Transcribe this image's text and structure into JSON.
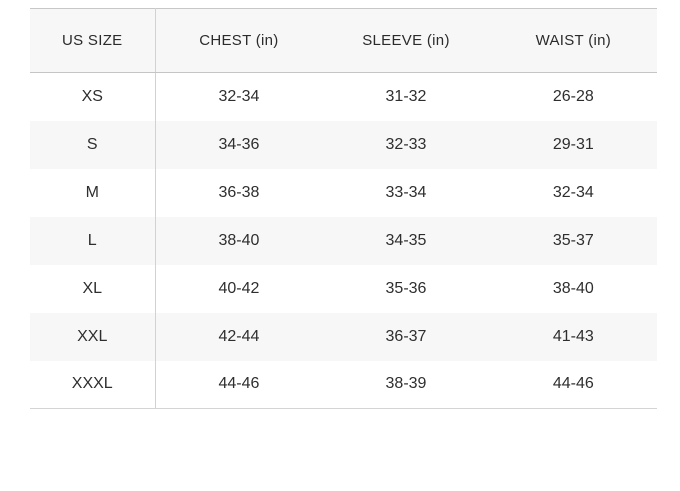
{
  "colors": {
    "header_bg": "#f7f7f7",
    "stripe_bg": "#f7f7f7",
    "top_border": "#c7c7c7",
    "header_border": "#c5c5c5",
    "divider": "#d2d2d2",
    "bottom_border": "#d4d4d4",
    "text": "#2e2e2e"
  },
  "size_chart": {
    "headers": [
      "US SIZE",
      "CHEST (in)",
      "SLEEVE (in)",
      "WAIST (in)"
    ],
    "rows": [
      {
        "size": "XS",
        "chest": "32-34",
        "sleeve": "31-32",
        "waist": "26-28"
      },
      {
        "size": "S",
        "chest": "34-36",
        "sleeve": "32-33",
        "waist": "29-31"
      },
      {
        "size": "M",
        "chest": "36-38",
        "sleeve": "33-34",
        "waist": "32-34"
      },
      {
        "size": "L",
        "chest": "38-40",
        "sleeve": "34-35",
        "waist": "35-37"
      },
      {
        "size": "XL",
        "chest": "40-42",
        "sleeve": "35-36",
        "waist": "38-40"
      },
      {
        "size": "XXL",
        "chest": "42-44",
        "sleeve": "36-37",
        "waist": "41-43"
      },
      {
        "size": "XXXL",
        "chest": "44-46",
        "sleeve": "38-39",
        "waist": "44-46"
      }
    ]
  },
  "chart_data": {
    "type": "table",
    "columns": [
      "US SIZE",
      "CHEST (in)",
      "SLEEVE (in)",
      "WAIST (in)"
    ],
    "rows": [
      [
        "XS",
        "32-34",
        "31-32",
        "26-28"
      ],
      [
        "S",
        "34-36",
        "32-33",
        "29-31"
      ],
      [
        "M",
        "36-38",
        "33-34",
        "32-34"
      ],
      [
        "L",
        "38-40",
        "34-35",
        "35-37"
      ],
      [
        "XL",
        "40-42",
        "35-36",
        "38-40"
      ],
      [
        "XXL",
        "42-44",
        "36-37",
        "41-43"
      ],
      [
        "XXXL",
        "44-46",
        "38-39",
        "44-46"
      ]
    ],
    "layout": {
      "header_background": "#f7f7f7",
      "zebra_striping": true,
      "striped_rows": [
        "S",
        "L",
        "XXL"
      ],
      "column_divider_after_first_column": true
    }
  }
}
